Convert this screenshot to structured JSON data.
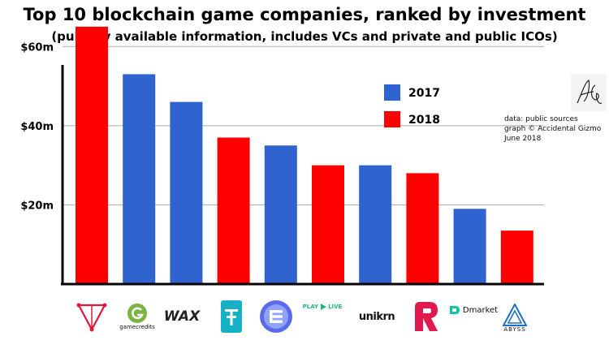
{
  "title": "Top 10 blockchain game companies, ranked by investment",
  "subtitle": "(publicly available information, includes VCs and private and public ICOs)",
  "colors": {
    "y2017": "#2f63d0",
    "y2018": "#ff0000"
  },
  "chart_data": {
    "type": "bar",
    "title": "Top 10 blockchain game companies, ranked by investment",
    "xlabel": "",
    "ylabel": "",
    "ylim": [
      0,
      66
    ],
    "yticks": [
      {
        "value": 20,
        "label": "$20m"
      },
      {
        "value": 40,
        "label": "$40m"
      },
      {
        "value": 60,
        "label": "$60m"
      }
    ],
    "legend": [
      {
        "label": "2017",
        "year": "2017"
      },
      {
        "label": "2018",
        "year": "2018"
      }
    ],
    "bars": [
      {
        "company": "Chainium",
        "value": 65,
        "year": "2018"
      },
      {
        "company": "GameCredits",
        "value": 53,
        "year": "2017"
      },
      {
        "company": "WAX",
        "value": 46,
        "year": "2017"
      },
      {
        "company": "Tether-style logo",
        "value": 37,
        "year": "2018"
      },
      {
        "company": "Enjin",
        "value": 35,
        "year": "2017"
      },
      {
        "company": "PlayLive",
        "value": 30,
        "year": "2018"
      },
      {
        "company": "Unikrn",
        "value": 30,
        "year": "2017"
      },
      {
        "company": "Refereum",
        "value": 28,
        "year": "2018"
      },
      {
        "company": "Dmarket",
        "value": 19,
        "year": "2017"
      },
      {
        "company": "The Abyss",
        "value": 13.5,
        "year": "2018"
      }
    ]
  },
  "source": {
    "line1": "data: public sources",
    "line2": "graph © Accidental Gizmo",
    "line3": "June 2018"
  },
  "logos": {
    "gamecredits": "gamecredits",
    "wax": "WAX",
    "playlive_a": "PLAY",
    "playlive_b": "LIVE",
    "unikrn": "unikrn",
    "dmarket": "Dmarket",
    "abyss": "ABYSS"
  }
}
